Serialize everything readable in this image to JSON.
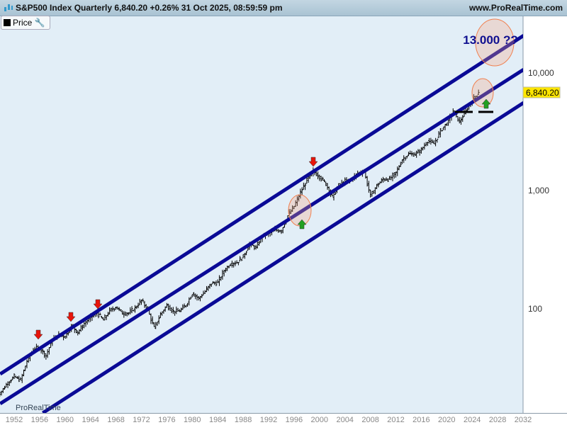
{
  "header": {
    "title": "S&P500 Index Quarterly 6,840.20 +0.26% 31 Oct 2025, 08:59:59 pm",
    "site": "www.ProRealTime.com",
    "watermark": "ProRealTime"
  },
  "legend": {
    "label": "Price",
    "icon": "wrench-icon"
  },
  "colors": {
    "plot_bg": "#e2eef7",
    "channel": "#0a0a96",
    "bars": "#000000",
    "price_tag": "#ffe600",
    "ellipse": "#f5a585",
    "down_arrow": "#e8140a",
    "up_arrow": "#22a022"
  },
  "chart_data": {
    "type": "ohlc-bar",
    "scale": "log",
    "xlabel": "",
    "ylabel": "",
    "x_ticks": [
      "1952",
      "1956",
      "1960",
      "1964",
      "1968",
      "1972",
      "1976",
      "1980",
      "1984",
      "1988",
      "1992",
      "1996",
      "2000",
      "2004",
      "2008",
      "2012",
      "2016",
      "2020",
      "2024",
      "2028",
      "2032"
    ],
    "y_ticks": [
      "100",
      "1,000",
      "10,000"
    ],
    "last_price": "6,840.20",
    "annual_closes": {
      "years": [
        1950,
        1951,
        1952,
        1953,
        1954,
        1955,
        1956,
        1957,
        1958,
        1959,
        1960,
        1961,
        1962,
        1963,
        1964,
        1965,
        1966,
        1967,
        1968,
        1969,
        1970,
        1971,
        1972,
        1973,
        1974,
        1975,
        1976,
        1977,
        1978,
        1979,
        1980,
        1981,
        1982,
        1983,
        1984,
        1985,
        1986,
        1987,
        1988,
        1989,
        1990,
        1991,
        1992,
        1993,
        1994,
        1995,
        1996,
        1997,
        1998,
        1999,
        2000,
        2001,
        2002,
        2003,
        2004,
        2005,
        2006,
        2007,
        2008,
        2009,
        2010,
        2011,
        2012,
        2013,
        2014,
        2015,
        2016,
        2017,
        2018,
        2019,
        2020,
        2021,
        2022,
        2023,
        2024,
        2025
      ],
      "values": [
        20,
        23.8,
        26.6,
        24.8,
        36,
        45.5,
        46.7,
        40,
        55.2,
        59.9,
        58.1,
        71.6,
        63.1,
        75,
        84.8,
        92.4,
        80.3,
        96.5,
        103.9,
        92,
        92.2,
        102,
        118,
        97.6,
        68.6,
        90.2,
        107.5,
        95.1,
        96.1,
        107.9,
        135.8,
        122.6,
        140.6,
        164.9,
        167.2,
        211.3,
        242.2,
        247.1,
        277.7,
        353.4,
        330.2,
        417.1,
        435.7,
        466.5,
        459.3,
        615.9,
        740.7,
        970.4,
        1229,
        1469,
        1320,
        1148,
        880,
        1112,
        1212,
        1248,
        1418,
        1468,
        903,
        1115,
        1258,
        1258,
        1426,
        1848,
        2059,
        2044,
        2239,
        2674,
        2507,
        3231,
        3756,
        4766,
        3840,
        4770,
        5882,
        6840
      ]
    },
    "channels": [
      {
        "name": "",
        "from": [
          1949.8,
          28
        ],
        "to": [
          2032.1,
          20800
        ]
      },
      {
        "name": "",
        "from": [
          1949.8,
          15.7
        ],
        "to": [
          2032.1,
          10700
        ]
      },
      {
        "name": "",
        "from": [
          1956.5,
          13.1
        ],
        "to": [
          2032.1,
          5600
        ]
      }
    ],
    "annotations": {
      "text": "13.000 ??",
      "down_arrows": [
        [
          1955.8,
          null
        ],
        [
          1960.9,
          null
        ],
        [
          1965.1,
          null
        ],
        [
          1999,
          null
        ]
      ],
      "up_arrows": [
        1997.2,
        2026.3
      ],
      "ellipses": [
        {
          "year": 1997,
          "price": 800
        },
        {
          "year": 2025.7,
          "price": 7000
        },
        {
          "year": 2027.5,
          "price": 13000
        }
      ]
    }
  }
}
